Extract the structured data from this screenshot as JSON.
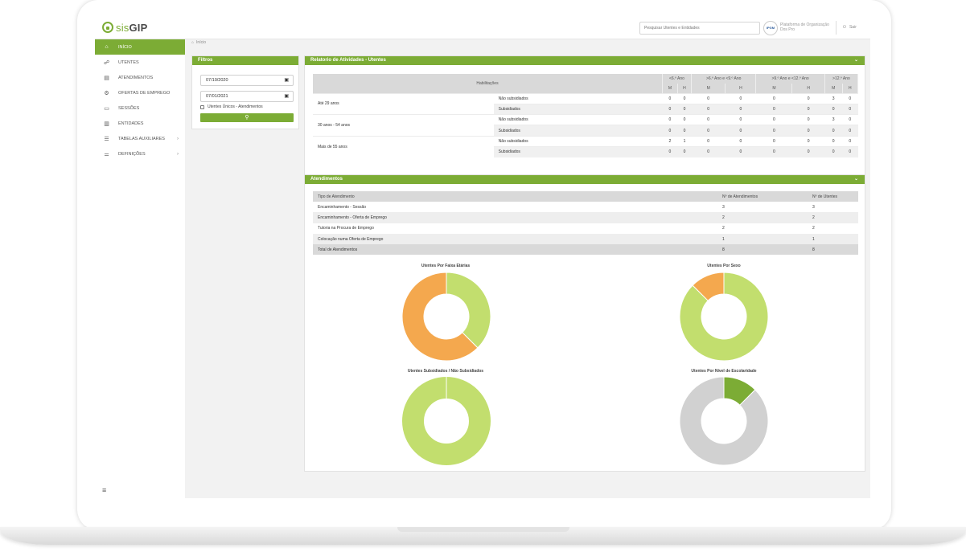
{
  "app": {
    "logo_prefix": "sis",
    "logo_suffix": "GIP"
  },
  "topbar": {
    "search_placeholder": "Pesquisar Utentes e Entidades",
    "org_badge": "IPGM",
    "org_name": "Plataforma de Organização Dos Pro",
    "logout_label": "Sair"
  },
  "sidebar": {
    "items": [
      {
        "label": "INÍCIO",
        "icon": "home-icon",
        "active": true
      },
      {
        "label": "UTENTES",
        "icon": "users-icon"
      },
      {
        "label": "ATENDIMENTOS",
        "icon": "clipboard-icon"
      },
      {
        "label": "OFERTAS DE EMPREGO",
        "icon": "job-offer-icon"
      },
      {
        "label": "SESSÕES",
        "icon": "sessions-icon"
      },
      {
        "label": "ENTIDADES",
        "icon": "building-icon"
      },
      {
        "label": "TABELAS AUXILIARES",
        "icon": "database-icon",
        "submenu": true
      },
      {
        "label": "DEFINIÇÕES",
        "icon": "settings-icon",
        "submenu": true
      }
    ]
  },
  "breadcrumb": {
    "label": "Início"
  },
  "filters": {
    "title": "Filtros",
    "date_from": "07/10/2020",
    "date_to": "07/01/2021",
    "checkbox_label": "Utentes Únicos - Atendimentos"
  },
  "relatorio": {
    "title": "Relatorio de Atividades - Utentes",
    "header_habilitacoes": "Habilitações",
    "groups": [
      "<6.º Ano",
      ">6.º Ano e <9.º Ano",
      ">9.º Ano e <12.º Ano",
      ">12.º Ano"
    ],
    "sub_headers": [
      "M",
      "H"
    ],
    "rows": [
      {
        "age": "Até 29 anos",
        "type": "Não subsidiados",
        "values": [
          "0",
          "0",
          "0",
          "0",
          "0",
          "0",
          "3",
          "0"
        ]
      },
      {
        "age": "",
        "type": "Subsidiados",
        "values": [
          "0",
          "0",
          "0",
          "0",
          "0",
          "0",
          "0",
          "0"
        ]
      },
      {
        "age": "30 anos - 54 anos",
        "type": "Não subsidiados",
        "values": [
          "0",
          "0",
          "0",
          "0",
          "0",
          "0",
          "3",
          "0"
        ]
      },
      {
        "age": "",
        "type": "Subsidiados",
        "values": [
          "0",
          "0",
          "0",
          "0",
          "0",
          "0",
          "0",
          "0"
        ]
      },
      {
        "age": "Mais de 55 anos",
        "type": "Não subsidiados",
        "values": [
          "2",
          "1",
          "0",
          "0",
          "0",
          "0",
          "0",
          "0"
        ]
      },
      {
        "age": "",
        "type": "Subsidiados",
        "values": [
          "0",
          "0",
          "0",
          "0",
          "0",
          "0",
          "0",
          "0"
        ]
      }
    ]
  },
  "atendimentos": {
    "title": "Atendimentos",
    "headers": [
      "Tipo de Atendimento",
      "Nº de Atendimentos",
      "Nº de Utentes"
    ],
    "rows": [
      [
        "Encaminhamento - Sessão",
        "3",
        "3"
      ],
      [
        "Encaminhamento - Oferta de Emprego",
        "2",
        "2"
      ],
      [
        "Tutoria na Procura de Emprego",
        "2",
        "2"
      ],
      [
        "Colocação numa Oferta de Emprego",
        "1",
        "1"
      ],
      [
        "Total de Atendimentos",
        "8",
        "8"
      ]
    ]
  },
  "colors": {
    "accent": "#7cac35",
    "orange": "#f4a84e",
    "light_green": "#c2de6e",
    "dark_green": "#7cac35",
    "grey": "#d1d1d1"
  },
  "chart_data": [
    {
      "type": "pie",
      "title": "Utentes Por Faixa Etárias",
      "values": [
        3,
        5
      ],
      "colors": [
        "#c2de6e",
        "#f4a84e"
      ]
    },
    {
      "type": "pie",
      "title": "Utentes Por Sexo",
      "values": [
        7,
        1
      ],
      "colors": [
        "#c2de6e",
        "#f4a84e"
      ]
    },
    {
      "type": "pie",
      "title": "Utentes Subsidiados / Não Subsidiados",
      "values": [
        8
      ],
      "colors": [
        "#c2de6e"
      ]
    },
    {
      "type": "pie",
      "title": "Utentes Por Nível de Escolaridade",
      "values": [
        1,
        7
      ],
      "colors": [
        "#7cac35",
        "#d1d1d1"
      ]
    }
  ]
}
